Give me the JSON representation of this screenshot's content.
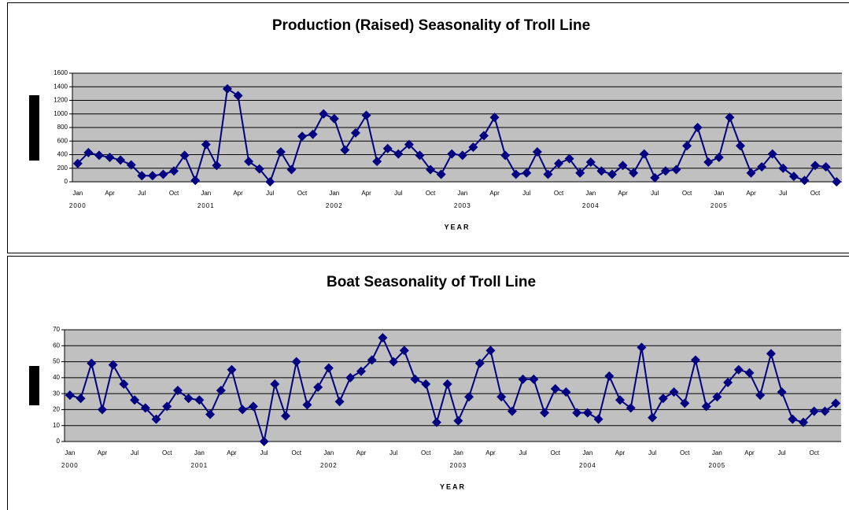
{
  "chart_data": [
    {
      "type": "line",
      "title": "Production (Raised) Seasonality of Troll Line",
      "x_label": "YEAR",
      "categories": [
        "Jan",
        null,
        null,
        "Apr",
        null,
        null,
        "Jul",
        null,
        null,
        "Oct",
        null,
        null,
        "Jan",
        null,
        null,
        "Apr",
        null,
        null,
        "Jul",
        null,
        null,
        "Oct",
        null,
        null,
        "Jan",
        null,
        null,
        "Apr",
        null,
        null,
        "Jul",
        null,
        null,
        "Oct",
        null,
        null,
        "Jan",
        null,
        null,
        "Apr",
        null,
        null,
        "Jul",
        null,
        null,
        "Oct",
        null,
        null,
        "Jan",
        null,
        null,
        "Apr",
        null,
        null,
        "Jul",
        null,
        null,
        "Oct",
        null,
        null,
        "Jan",
        null,
        null,
        "Apr",
        null,
        null,
        "Jul",
        null,
        null,
        "Oct",
        null,
        null
      ],
      "year_labels": [
        "2000",
        "2001",
        "2002",
        "2003",
        "2004",
        "2005"
      ],
      "series": [
        {
          "color": "#000080",
          "values": [
            270,
            430,
            390,
            360,
            320,
            250,
            90,
            90,
            110,
            160,
            390,
            20,
            550,
            240,
            1370,
            1270,
            300,
            190,
            0,
            440,
            180,
            670,
            700,
            1000,
            930,
            470,
            720,
            980,
            300,
            490,
            410,
            550,
            390,
            180,
            110,
            410,
            390,
            510,
            680,
            950,
            390,
            110,
            130,
            440,
            110,
            270,
            340,
            130,
            290,
            160,
            110,
            240,
            130,
            410,
            60,
            160,
            180,
            530,
            800,
            290,
            360,
            950,
            530,
            130,
            220,
            410,
            200,
            80,
            20,
            240,
            220,
            0
          ]
        }
      ],
      "ylim": [
        0,
        1600
      ],
      "yticks": [
        0,
        200,
        400,
        600,
        800,
        1000,
        1200,
        1400,
        1600
      ],
      "grid": true
    },
    {
      "type": "line",
      "title": "Boat Seasonality of Troll Line",
      "x_label": "YEAR",
      "categories": [
        "Jan",
        null,
        null,
        "Apr",
        null,
        null,
        "Jul",
        null,
        null,
        "Oct",
        null,
        null,
        "Jan",
        null,
        null,
        "Apr",
        null,
        null,
        "Jul",
        null,
        null,
        "Oct",
        null,
        null,
        "Jan",
        null,
        null,
        "Apr",
        null,
        null,
        "Jul",
        null,
        null,
        "Oct",
        null,
        null,
        "Jan",
        null,
        null,
        "Apr",
        null,
        null,
        "Jul",
        null,
        null,
        "Oct",
        null,
        null,
        "Jan",
        null,
        null,
        "Apr",
        null,
        null,
        "Jul",
        null,
        null,
        "Oct",
        null,
        null,
        "Jan",
        null,
        null,
        "Apr",
        null,
        null,
        "Jul",
        null,
        null,
        "Oct",
        null,
        null
      ],
      "year_labels": [
        "2000",
        "2001",
        "2002",
        "2003",
        "2004",
        "2005"
      ],
      "series": [
        {
          "color": "#000080",
          "values": [
            29,
            27,
            49,
            20,
            48,
            36,
            26,
            21,
            14,
            22,
            32,
            27,
            26,
            17,
            32,
            45,
            20,
            22,
            0,
            36,
            16,
            50,
            23,
            34,
            46,
            25,
            40,
            44,
            51,
            65,
            50,
            57,
            39,
            36,
            12,
            36,
            13,
            28,
            49,
            57,
            28,
            19,
            39,
            39,
            18,
            33,
            31,
            18,
            18,
            14,
            41,
            26,
            21,
            59,
            15,
            27,
            31,
            24,
            51,
            22,
            28,
            37,
            45,
            43,
            29,
            55,
            31,
            14,
            12,
            19,
            19,
            24
          ]
        }
      ],
      "ylim": [
        0,
        70
      ],
      "yticks": [
        0,
        10,
        20,
        30,
        40,
        50,
        60,
        70
      ],
      "grid": true
    }
  ]
}
